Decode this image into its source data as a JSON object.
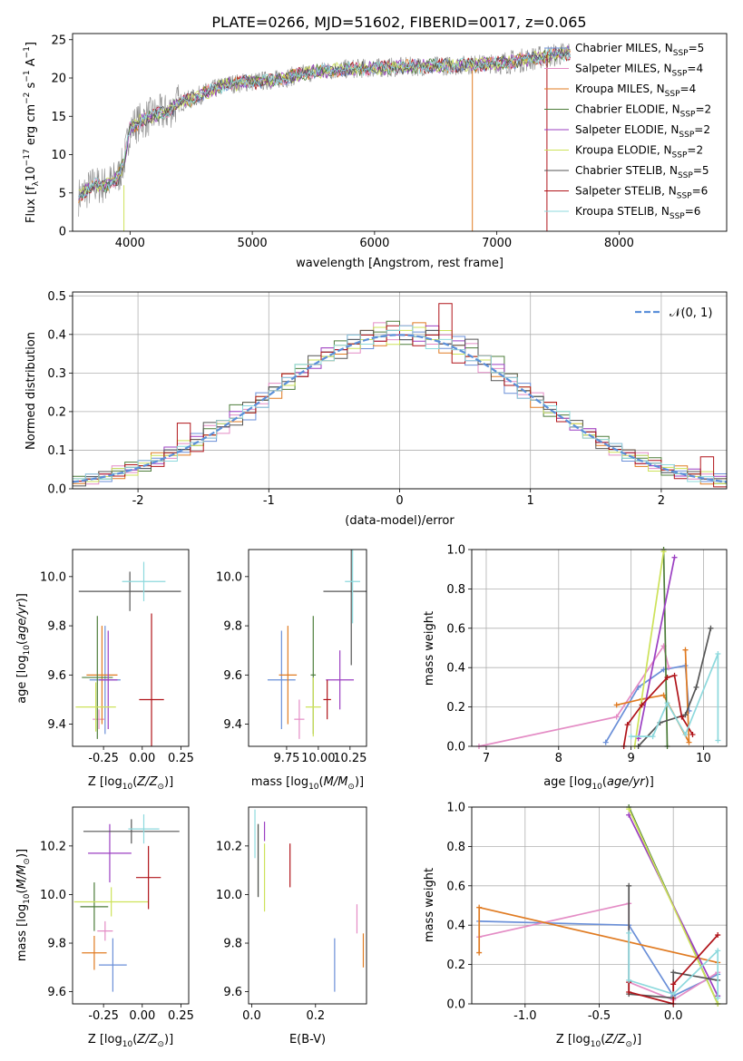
{
  "figure_title": "PLATE=0266, MJD=51602, FIBERID=0017, z=0.065",
  "legend_labels": [
    "Chabrier MILES, N",
    "Salpeter MILES, N",
    "Kroupa MILES, N",
    "Chabrier ELODIE, N",
    "Salpeter ELODIE, N",
    "Kroupa ELODIE, N",
    "Chabrier STELIB, N",
    "Salpeter STELIB, N",
    "Kroupa STELIB, N"
  ],
  "legend_sub": "SSP",
  "legend_nvals": [
    "=5",
    "=4",
    "=4",
    "=2",
    "=2",
    "=2",
    "=5",
    "=6",
    "=6"
  ],
  "model_colors": [
    "#6a8fd8",
    "#e48cc5",
    "#e07b22",
    "#4d7d3a",
    "#9b3fc2",
    "#cde25a",
    "#555555",
    "#b0141a",
    "#8dd9dd"
  ],
  "chart_data": [
    {
      "type": "line",
      "title": "PLATE=0266, MJD=51602, FIBERID=0017, z=0.065",
      "xlabel": "wavelength [Angstrom, rest frame]",
      "ylabel": "Flux [f_λ 10^-17 erg cm^-2 s^-1 A^-1]",
      "xlim": [
        3530,
        8880
      ],
      "ylim": [
        0,
        25.8
      ],
      "xticks": [
        4000,
        5000,
        6000,
        7000,
        8000
      ],
      "yticks": [
        0,
        5,
        10,
        15,
        20,
        25
      ],
      "continuum": {
        "x": [
          3580,
          3700,
          3800,
          3900,
          3950,
          4000,
          4100,
          4200,
          4300,
          4400,
          4500,
          4600,
          4700,
          4800,
          5000,
          5200,
          5500,
          5800,
          6000,
          6300,
          6600,
          7000,
          7200,
          7400,
          7600
        ],
        "y": [
          4.5,
          6.0,
          6.0,
          7.0,
          9.0,
          13.5,
          14.5,
          15.2,
          15.5,
          16.8,
          17.2,
          18.0,
          18.6,
          19.2,
          19.5,
          19.8,
          20.8,
          21.2,
          21.3,
          21.5,
          21.6,
          21.9,
          22.3,
          22.8,
          23.3
        ]
      },
      "series": [
        {
          "name": "Chabrier MILES, N_SSP=5"
        },
        {
          "name": "Salpeter MILES, N_SSP=4"
        },
        {
          "name": "Kroupa MILES, N_SSP=4"
        },
        {
          "name": "Chabrier ELODIE, N_SSP=2"
        },
        {
          "name": "Salpeter ELODIE, N_SSP=2"
        },
        {
          "name": "Kroupa ELODIE, N_SSP=2"
        },
        {
          "name": "Chabrier STELIB, N_SSP=5"
        },
        {
          "name": "Salpeter STELIB, N_SSP=6"
        },
        {
          "name": "Kroupa STELIB, N_SSP=6"
        }
      ]
    },
    {
      "type": "step",
      "xlabel": "(data-model)/error",
      "ylabel": "Normed distribution",
      "xlim": [
        -2.5,
        2.5
      ],
      "ylim": [
        0,
        0.51
      ],
      "xticks": [
        -2,
        -1,
        0,
        1,
        2
      ],
      "yticks": [
        0.0,
        0.1,
        0.2,
        0.3,
        0.4,
        0.5
      ],
      "legend": "N(0,1)",
      "bin_width": 0.1,
      "gaussian": {
        "mean": 0,
        "sigma": 1
      },
      "offsets": [
        [
          0.0,
          0.01,
          -0.02,
          0.02,
          0.0,
          -0.01,
          0.01,
          0.02,
          -0.01,
          0.03,
          -0.02,
          0.01,
          0.0,
          -0.03,
          0.02,
          0.01,
          -0.01,
          0.02,
          0.0,
          0.01
        ],
        [
          0.01,
          -0.02,
          0.0,
          0.03,
          -0.01,
          0.02,
          0.0,
          -0.01,
          0.02,
          0.0,
          0.03,
          -0.02,
          0.01,
          0.0,
          -0.01,
          0.02,
          0.01,
          -0.01,
          0.0,
          0.02
        ],
        [
          -0.01,
          0.0,
          0.02,
          -0.02,
          0.01,
          0.0,
          0.03,
          0.0,
          -0.02,
          0.01,
          0.0,
          0.02,
          -0.01,
          0.01,
          0.0,
          -0.02,
          0.02,
          0.0,
          0.01,
          -0.01
        ],
        [
          0.02,
          0.0,
          -0.01,
          0.01,
          0.03,
          -0.02,
          0.0,
          0.01,
          0.0,
          -0.01,
          0.02,
          0.0,
          0.04,
          -0.01,
          0.0,
          0.01,
          -0.02,
          0.01,
          0.0,
          0.0
        ],
        [
          0.0,
          0.02,
          0.01,
          -0.01,
          0.0,
          0.02,
          -0.01,
          0.03,
          0.0,
          0.02,
          -0.01,
          0.0,
          0.02,
          0.01,
          -0.02,
          0.0,
          0.01,
          0.0,
          -0.01,
          0.02
        ],
        [
          0.01,
          -0.01,
          0.0,
          0.02,
          -0.02,
          0.01,
          0.02,
          0.0,
          0.03,
          -0.01,
          0.0,
          0.01,
          0.0,
          0.02,
          0.01,
          0.0,
          -0.01,
          0.02,
          0.01,
          0.0
        ],
        [
          -0.02,
          0.01,
          0.02,
          0.0,
          0.01,
          -0.01,
          0.0,
          0.02,
          0.0,
          0.01,
          0.04,
          0.0,
          -0.02,
          0.02,
          0.0,
          0.01,
          0.0,
          -0.01,
          0.02,
          0.01
        ],
        [
          0.0,
          0.0,
          0.01,
          -0.01,
          0.02,
          0.0,
          -0.02,
          0.01,
          0.09,
          -0.03,
          0.0,
          0.02,
          0.0,
          -0.01,
          0.01,
          0.0,
          0.02,
          -0.01,
          0.0,
          0.01
        ],
        [
          0.01,
          0.02,
          -0.01,
          0.0,
          0.01,
          0.02,
          0.0,
          -0.02,
          0.01,
          0.0,
          -0.01,
          0.02,
          0.0,
          0.01,
          -0.02,
          0.0,
          0.01,
          0.02,
          0.0,
          -0.01
        ]
      ]
    },
    {
      "type": "errorbar",
      "xlabel": "Z [log10(Z/Z_sun)]",
      "ylabel": "age [log10(age/yr)]",
      "xlim": [
        -0.45,
        0.3
      ],
      "ylim": [
        9.31,
        10.11
      ],
      "xticks": [
        -0.25,
        0.0,
        0.25
      ],
      "yticks": [
        9.4,
        9.6,
        9.8,
        10.0
      ],
      "points": [
        {
          "x": -0.24,
          "xerr": 0.1,
          "y": 9.58,
          "yerr": 0.22
        },
        {
          "x": -0.28,
          "xerr": 0.04,
          "y": 9.42,
          "yerr": 0.04
        },
        {
          "x": -0.26,
          "xerr": 0.1,
          "y": 9.6,
          "yerr": 0.2
        },
        {
          "x": -0.29,
          "xerr": 0.1,
          "y": 9.59,
          "yerr": 0.25
        },
        {
          "x": -0.22,
          "xerr": 0.06,
          "y": 9.58,
          "yerr": 0.2
        },
        {
          "x": -0.3,
          "xerr": 0.13,
          "y": 9.47,
          "yerr": 0.1
        },
        {
          "x": -0.08,
          "xerr": 0.33,
          "y": 9.94,
          "yerr": 0.08
        },
        {
          "x": 0.06,
          "xerr": 0.08,
          "y": 9.5,
          "yerr": 0.35
        },
        {
          "x": 0.01,
          "xerr": 0.14,
          "y": 9.98,
          "yerr": 0.08
        }
      ]
    },
    {
      "type": "errorbar",
      "xlabel": "mass [log10(M/M_sun)]",
      "xlim": [
        9.45,
        10.38
      ],
      "ylim": [
        9.31,
        10.11
      ],
      "xticks": [
        9.75,
        10.0,
        10.25
      ],
      "yticks": [
        9.4,
        9.6,
        9.8,
        10.0
      ],
      "points": [
        {
          "x": 9.71,
          "xerr": 0.11,
          "y": 9.58,
          "yerr": 0.2
        },
        {
          "x": 9.85,
          "xerr": 0.04,
          "y": 9.42,
          "yerr": 0.08
        },
        {
          "x": 9.76,
          "xerr": 0.07,
          "y": 9.6,
          "yerr": 0.2
        },
        {
          "x": 9.96,
          "xerr": 0.02,
          "y": 9.6,
          "yerr": 0.24
        },
        {
          "x": 10.17,
          "xerr": 0.11,
          "y": 9.58,
          "yerr": 0.12
        },
        {
          "x": 9.96,
          "xerr": 0.06,
          "y": 9.47,
          "yerr": 0.12
        },
        {
          "x": 10.26,
          "xerr": 0.22,
          "y": 9.94,
          "yerr": 0.3
        },
        {
          "x": 10.07,
          "xerr": 0.03,
          "y": 9.5,
          "yerr": 0.08
        },
        {
          "x": 10.27,
          "xerr": 0.06,
          "y": 9.98,
          "yerr": 0.17
        }
      ]
    },
    {
      "type": "line",
      "xlabel": "age [log10(age/yr)]",
      "ylabel": "mass weight",
      "xlim": [
        6.8,
        10.32
      ],
      "ylim": [
        0,
        1
      ],
      "xticks": [
        7,
        8,
        9,
        10
      ],
      "yticks": [
        0.0,
        0.2,
        0.4,
        0.6,
        0.8,
        1.0
      ],
      "series": [
        {
          "x": [
            8.65,
            9.1,
            9.45,
            9.75,
            9.8
          ],
          "y": [
            0.02,
            0.3,
            0.39,
            0.41,
            0.18
          ]
        },
        {
          "x": [
            6.9,
            8.8,
            9.45,
            9.52
          ],
          "y": [
            0.0,
            0.15,
            0.51,
            0.4
          ]
        },
        {
          "x": [
            8.8,
            9.15,
            9.45,
            9.8,
            9.75
          ],
          "y": [
            0.21,
            0.24,
            0.26,
            0.02,
            0.49
          ]
        },
        {
          "x": [
            9.45,
            9.5
          ],
          "y": [
            1.0,
            0.0
          ]
        },
        {
          "x": [
            9.1,
            9.6
          ],
          "y": [
            0.04,
            0.96
          ]
        },
        {
          "x": [
            9.05,
            9.45
          ],
          "y": [
            0.0,
            0.99
          ]
        },
        {
          "x": [
            9.1,
            9.4,
            9.75,
            9.9,
            10.1
          ],
          "y": [
            0.0,
            0.12,
            0.16,
            0.3,
            0.6
          ]
        },
        {
          "x": [
            8.9,
            8.95,
            9.15,
            9.5,
            9.6,
            9.7,
            9.85
          ],
          "y": [
            0.0,
            0.11,
            0.21,
            0.35,
            0.36,
            0.15,
            0.06
          ]
        },
        {
          "x": [
            9.0,
            9.3,
            9.5,
            9.75,
            10.2,
            10.2
          ],
          "y": [
            0.05,
            0.05,
            0.22,
            0.06,
            0.47,
            0.03
          ]
        }
      ]
    },
    {
      "type": "errorbar",
      "xlabel": "Z [log10(Z/Z_sun)]",
      "ylabel": "mass [log10(M/M_sun)]",
      "xlim": [
        -0.45,
        0.3
      ],
      "ylim": [
        9.55,
        10.36
      ],
      "xticks": [
        -0.25,
        0.0,
        0.25
      ],
      "yticks": [
        9.6,
        9.8,
        10.0,
        10.2
      ],
      "points": [
        {
          "x": -0.19,
          "xerr": 0.09,
          "y": 9.71,
          "yerr": 0.11
        },
        {
          "x": -0.24,
          "xerr": 0.05,
          "y": 9.85,
          "yerr": 0.04
        },
        {
          "x": -0.31,
          "xerr": 0.08,
          "y": 9.76,
          "yerr": 0.07
        },
        {
          "x": -0.31,
          "xerr": 0.09,
          "y": 9.95,
          "yerr": 0.1
        },
        {
          "x": -0.21,
          "xerr": 0.14,
          "y": 10.17,
          "yerr": 0.12
        },
        {
          "x": -0.2,
          "xerr": 0.24,
          "y": 9.97,
          "yerr": 0.06
        },
        {
          "x": -0.07,
          "xerr": 0.31,
          "y": 10.26,
          "yerr": 0.05
        },
        {
          "x": 0.04,
          "xerr": 0.08,
          "y": 10.07,
          "yerr": 0.13
        },
        {
          "x": 0.01,
          "xerr": 0.1,
          "y": 10.27,
          "yerr": 0.06
        }
      ]
    },
    {
      "type": "errorbar",
      "xlabel": "E(B-V)",
      "xlim": [
        -0.01,
        0.36
      ],
      "ylim": [
        9.55,
        10.36
      ],
      "xticks": [
        0.0,
        0.2
      ],
      "yticks": [
        9.6,
        9.8,
        10.0,
        10.2
      ],
      "points": [
        {
          "x": 0.26,
          "y": 9.71,
          "yerr": 0.11
        },
        {
          "x": 0.33,
          "y": 9.9,
          "yerr": 0.06
        },
        {
          "x": 0.35,
          "y": 9.77,
          "yerr": 0.07
        },
        {
          "x": 0.02,
          "y": 10.14,
          "yerr": 0.15
        },
        {
          "x": 0.04,
          "y": 10.26,
          "yerr": 0.04
        },
        {
          "x": 0.04,
          "y": 10.07,
          "yerr": 0.14
        },
        {
          "x": 0.02,
          "y": 10.14,
          "yerr": 0.15
        },
        {
          "x": 0.12,
          "y": 10.12,
          "yerr": 0.09
        },
        {
          "x": 0.01,
          "y": 10.25,
          "yerr": 0.1
        }
      ]
    },
    {
      "type": "line",
      "xlabel": "Z [log10(Z/Z_sun)]",
      "ylabel": "mass weight",
      "xlim": [
        -1.36,
        0.36
      ],
      "ylim": [
        0,
        1
      ],
      "xticks": [
        -1.0,
        -0.5,
        0.0
      ],
      "yticks": [
        0.0,
        0.2,
        0.4,
        0.6,
        0.8,
        1.0
      ],
      "series": [
        {
          "x": [
            -1.31,
            -0.3,
            0.0,
            0.3
          ],
          "y": [
            0.42,
            0.4,
            0.04,
            0.15
          ]
        },
        {
          "x": [
            -1.31,
            -0.3,
            -0.3,
            0.0,
            0.3
          ],
          "y": [
            0.34,
            0.51,
            0.11,
            0.02,
            0.16
          ]
        },
        {
          "x": [
            -1.31,
            -1.31,
            0.3
          ],
          "y": [
            0.26,
            0.49,
            0.21
          ]
        },
        {
          "x": [
            -0.3,
            0.3
          ],
          "y": [
            1.0,
            0.0
          ]
        },
        {
          "x": [
            -0.3,
            0.3
          ],
          "y": [
            0.96,
            0.04
          ]
        },
        {
          "x": [
            -0.3,
            0.3
          ],
          "y": [
            0.99,
            0.0
          ]
        },
        {
          "x": [
            -0.3,
            -0.3,
            0.0,
            0.0,
            0.3
          ],
          "y": [
            0.6,
            0.05,
            0.03,
            0.16,
            0.12
          ]
        },
        {
          "x": [
            -0.3,
            -0.3,
            0.0,
            0.0,
            0.3
          ],
          "y": [
            0.11,
            0.06,
            0.0,
            0.1,
            0.35
          ]
        },
        {
          "x": [
            -0.3,
            -0.3,
            0.0,
            0.3,
            0.3
          ],
          "y": [
            0.36,
            0.12,
            0.05,
            0.27,
            0.03
          ]
        }
      ]
    }
  ]
}
